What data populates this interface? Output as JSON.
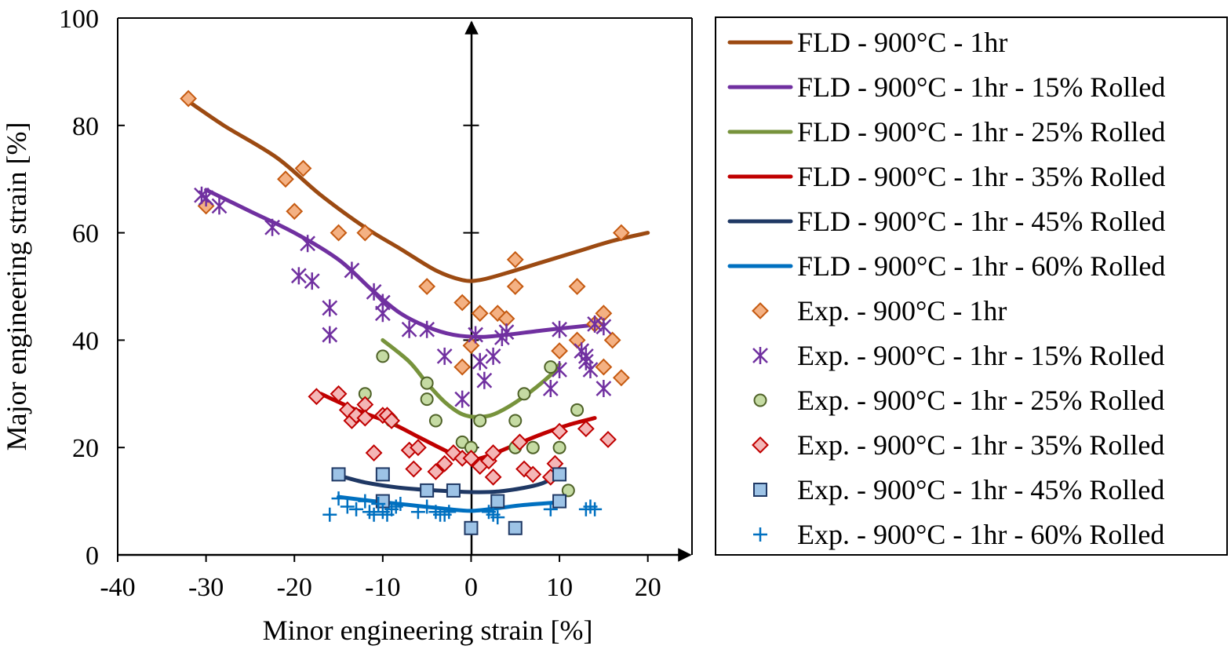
{
  "chart_data": {
    "type": "scatter",
    "title": "",
    "xlabel": "Minor engineering strain [%]",
    "ylabel": "Major engineering strain [%]",
    "xlim": [
      -40,
      25
    ],
    "ylim": [
      0,
      100
    ],
    "xticks": [
      -40,
      -30,
      -20,
      -10,
      0,
      10,
      20
    ],
    "yticks": [
      0,
      20,
      40,
      60,
      80,
      100
    ],
    "grid": false,
    "legend_position": "right",
    "lines": [
      {
        "name": "FLD - 900°C - 1hr",
        "color": "#9C4A12",
        "points": [
          [
            -32,
            84.5
          ],
          [
            -28,
            80
          ],
          [
            -22,
            74
          ],
          [
            -17,
            67
          ],
          [
            -12,
            61
          ],
          [
            -8,
            57
          ],
          [
            -4,
            53
          ],
          [
            -1,
            51.2
          ],
          [
            1,
            51.2
          ],
          [
            4,
            52.5
          ],
          [
            8,
            54.5
          ],
          [
            12,
            56.5
          ],
          [
            16,
            58.5
          ],
          [
            20,
            60
          ]
        ]
      },
      {
        "name": "FLD - 900°C - 1hr - 15% Rolled",
        "color": "#7030A0",
        "points": [
          [
            -30,
            68
          ],
          [
            -25,
            64
          ],
          [
            -20,
            60
          ],
          [
            -15,
            55
          ],
          [
            -11,
            49
          ],
          [
            -8,
            45
          ],
          [
            -5,
            42.5
          ],
          [
            -2,
            41
          ],
          [
            1,
            40.6
          ],
          [
            4,
            41
          ],
          [
            8,
            41.8
          ],
          [
            12,
            42.5
          ],
          [
            15,
            43
          ]
        ]
      },
      {
        "name": "FLD - 900°C - 1hr - 25% Rolled",
        "color": "#77933C",
        "points": [
          [
            -10,
            40
          ],
          [
            -7,
            36
          ],
          [
            -5,
            32
          ],
          [
            -3,
            28.5
          ],
          [
            -1,
            26.2
          ],
          [
            1,
            25.7
          ],
          [
            3,
            26.5
          ],
          [
            6,
            29.5
          ],
          [
            9,
            33.5
          ],
          [
            10,
            35.5
          ]
        ]
      },
      {
        "name": "FLD - 900°C - 1hr - 35% Rolled",
        "color": "#C00000",
        "points": [
          [
            -17,
            30
          ],
          [
            -13,
            27
          ],
          [
            -9,
            24.5
          ],
          [
            -6,
            22
          ],
          [
            -3,
            19.5
          ],
          [
            -1,
            18
          ],
          [
            0,
            17.6
          ],
          [
            2,
            18.5
          ],
          [
            5,
            20.5
          ],
          [
            8,
            22.5
          ],
          [
            11,
            24.2
          ],
          [
            14,
            25.5
          ]
        ]
      },
      {
        "name": "FLD - 900°C - 1hr - 45% Rolled",
        "color": "#1F3864",
        "points": [
          [
            -15,
            14.8
          ],
          [
            -12,
            13.5
          ],
          [
            -8,
            12.5
          ],
          [
            -4,
            12
          ],
          [
            0,
            11.7
          ],
          [
            3,
            11.8
          ],
          [
            6,
            12.5
          ],
          [
            8,
            13.3
          ],
          [
            9.5,
            14.5
          ]
        ]
      },
      {
        "name": "FLD - 900°C - 1hr - 60% Rolled",
        "color": "#0070C0",
        "points": [
          [
            -15,
            10.8
          ],
          [
            -11,
            10
          ],
          [
            -7,
            9.3
          ],
          [
            -3,
            8.6
          ],
          [
            0,
            8.2
          ],
          [
            3,
            8.7
          ],
          [
            6,
            9.3
          ],
          [
            10,
            9.8
          ]
        ]
      }
    ],
    "series": [
      {
        "name": "Exp. - 900°C - 1hr",
        "marker": "diamond",
        "fill": "#F4B183",
        "stroke": "#C55A11",
        "points": [
          [
            -32,
            85
          ],
          [
            -30,
            65
          ],
          [
            -21,
            70
          ],
          [
            -20,
            64
          ],
          [
            -19,
            72
          ],
          [
            -15,
            60
          ],
          [
            -12,
            60
          ],
          [
            -5,
            50
          ],
          [
            -1,
            47
          ],
          [
            -1,
            35
          ],
          [
            0,
            39
          ],
          [
            1,
            45
          ],
          [
            3,
            45
          ],
          [
            4,
            44
          ],
          [
            5,
            55
          ],
          [
            5,
            50
          ],
          [
            10,
            38
          ],
          [
            12,
            50
          ],
          [
            12,
            40
          ],
          [
            14,
            43
          ],
          [
            15,
            45
          ],
          [
            15,
            35
          ],
          [
            16,
            40
          ],
          [
            17,
            60
          ],
          [
            17,
            33
          ]
        ]
      },
      {
        "name": "Exp. - 900°C - 1hr - 15% Rolled",
        "marker": "star",
        "fill": "none",
        "stroke": "#7030A0",
        "points": [
          [
            -30.5,
            67
          ],
          [
            -30,
            66.5
          ],
          [
            -28.5,
            65
          ],
          [
            -22.5,
            61
          ],
          [
            -19.5,
            52
          ],
          [
            -18.5,
            58
          ],
          [
            -18,
            51
          ],
          [
            -16,
            46
          ],
          [
            -16,
            41
          ],
          [
            -13.5,
            53
          ],
          [
            -11,
            49
          ],
          [
            -10,
            47
          ],
          [
            -10,
            45
          ],
          [
            -7,
            42
          ],
          [
            -5,
            42
          ],
          [
            -3,
            37
          ],
          [
            -1,
            29
          ],
          [
            0.5,
            41
          ],
          [
            1,
            36
          ],
          [
            1.5,
            32.5
          ],
          [
            2.5,
            37
          ],
          [
            3.5,
            40.5
          ],
          [
            4,
            41.5
          ],
          [
            9,
            31
          ],
          [
            10,
            34.5
          ],
          [
            10,
            42
          ],
          [
            12.5,
            38
          ],
          [
            13,
            36
          ],
          [
            13,
            37
          ],
          [
            13.5,
            34.5
          ],
          [
            14,
            43
          ],
          [
            15,
            42.5
          ],
          [
            15,
            31
          ]
        ]
      },
      {
        "name": "Exp. - 900°C - 1hr - 25% Rolled",
        "marker": "circle",
        "fill": "#C5DBA3",
        "stroke": "#4F6228",
        "points": [
          [
            -12,
            30
          ],
          [
            -10,
            37
          ],
          [
            -9,
            25
          ],
          [
            -5,
            32
          ],
          [
            -5,
            29
          ],
          [
            -4,
            25
          ],
          [
            -1,
            21
          ],
          [
            0,
            20
          ],
          [
            1,
            25
          ],
          [
            5,
            25
          ],
          [
            5,
            20
          ],
          [
            6,
            30
          ],
          [
            7,
            20
          ],
          [
            9,
            35
          ],
          [
            10,
            20
          ],
          [
            11,
            12
          ],
          [
            12,
            27
          ]
        ]
      },
      {
        "name": "Exp. - 900°C - 1hr - 35% Rolled",
        "marker": "diamond",
        "fill": "#F4B6B6",
        "stroke": "#C00000",
        "points": [
          [
            -17.5,
            29.5
          ],
          [
            -15,
            30
          ],
          [
            -14,
            27
          ],
          [
            -13.5,
            25
          ],
          [
            -13,
            26
          ],
          [
            -12,
            28
          ],
          [
            -12,
            25.5
          ],
          [
            -11,
            19
          ],
          [
            -10,
            26
          ],
          [
            -9.5,
            26
          ],
          [
            -9,
            25
          ],
          [
            -7,
            19.5
          ],
          [
            -6.5,
            16
          ],
          [
            -6,
            20
          ],
          [
            -4,
            15.5
          ],
          [
            -3,
            17
          ],
          [
            -2,
            19
          ],
          [
            -1,
            18
          ],
          [
            0,
            18
          ],
          [
            1,
            16.5
          ],
          [
            2,
            17.5
          ],
          [
            2.5,
            19
          ],
          [
            2.5,
            14.5
          ],
          [
            5.5,
            21
          ],
          [
            6,
            16
          ],
          [
            7,
            15
          ],
          [
            9,
            14.5
          ],
          [
            9.5,
            17
          ],
          [
            10,
            23
          ],
          [
            13,
            23.5
          ],
          [
            15.5,
            21.5
          ]
        ]
      },
      {
        "name": "Exp. - 900°C - 1hr - 45% Rolled",
        "marker": "square",
        "fill": "#9DC3E6",
        "stroke": "#1F3864",
        "points": [
          [
            -15,
            15
          ],
          [
            -10,
            15
          ],
          [
            -10,
            10
          ],
          [
            -5,
            12
          ],
          [
            -2,
            12
          ],
          [
            0,
            5
          ],
          [
            3,
            10
          ],
          [
            5,
            5
          ],
          [
            10,
            15
          ],
          [
            10,
            10
          ]
        ]
      },
      {
        "name": "Exp. - 900°C - 1hr - 60% Rolled",
        "marker": "plus",
        "fill": "none",
        "stroke": "#0070C0",
        "points": [
          [
            -16,
            7.5
          ],
          [
            -15,
            10.5
          ],
          [
            -14,
            9
          ],
          [
            -13,
            8.5
          ],
          [
            -12,
            10
          ],
          [
            -11.5,
            8
          ],
          [
            -11,
            7.5
          ],
          [
            -10.5,
            9.5
          ],
          [
            -10,
            8
          ],
          [
            -9.5,
            7.5
          ],
          [
            -9,
            8.5
          ],
          [
            -8.5,
            9
          ],
          [
            -8,
            9.5
          ],
          [
            -6,
            8
          ],
          [
            -5,
            9
          ],
          [
            -4,
            8
          ],
          [
            -3.5,
            7.5
          ],
          [
            -3,
            7.5
          ],
          [
            -2.5,
            8
          ],
          [
            2,
            8
          ],
          [
            2.5,
            7.5
          ],
          [
            3,
            7
          ],
          [
            9,
            8.5
          ],
          [
            13,
            8.5
          ],
          [
            13.5,
            9
          ],
          [
            14,
            8.5
          ]
        ]
      }
    ]
  }
}
